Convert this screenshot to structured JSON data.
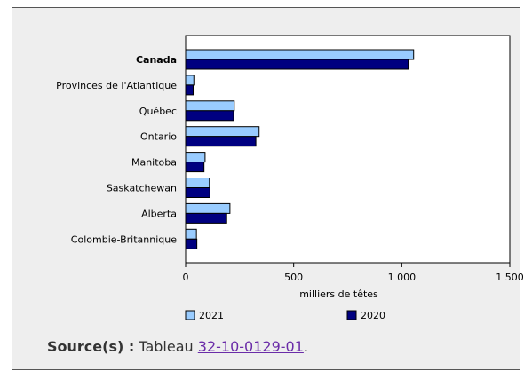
{
  "chart_data": {
    "type": "bar",
    "orientation": "horizontal",
    "categories": [
      "Canada",
      "Provinces de l'Atlantique",
      "Québec",
      "Ontario",
      "Manitoba",
      "Saskatchewan",
      "Alberta",
      "Colombie-Britannique"
    ],
    "series": [
      {
        "name": "2021",
        "color": "#99ccff",
        "values": [
          1055,
          38,
          225,
          340,
          90,
          110,
          205,
          50
        ]
      },
      {
        "name": "2020",
        "color": "#000080",
        "values": [
          1030,
          35,
          222,
          325,
          85,
          112,
          190,
          52
        ]
      }
    ],
    "xlabel": "milliers de têtes",
    "xlim": [
      0,
      1500
    ],
    "xticks": [
      0,
      500,
      1000,
      1500
    ],
    "xtick_labels": [
      "0",
      "500",
      "1 000",
      "1 500"
    ],
    "grid": false,
    "legend_position": "bottom"
  },
  "source": {
    "label": "Source(s) :",
    "text": "Tableau",
    "link": "32-10-0129-01",
    "suffix": "."
  }
}
